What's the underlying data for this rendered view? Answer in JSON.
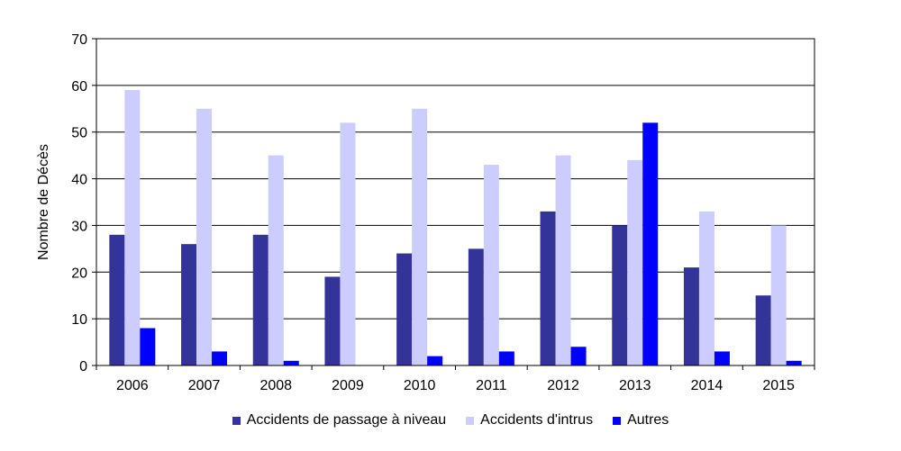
{
  "chart_data": {
    "type": "bar",
    "categories": [
      "2006",
      "2007",
      "2008",
      "2009",
      "2010",
      "2011",
      "2012",
      "2013",
      "2014",
      "2015"
    ],
    "series": [
      {
        "name": "Accidents de passage à niveau",
        "color": "#333399",
        "values": [
          28,
          26,
          28,
          19,
          24,
          25,
          33,
          30,
          21,
          15
        ]
      },
      {
        "name": "Accidents d'intrus",
        "color": "#ccccff",
        "values": [
          59,
          55,
          45,
          52,
          55,
          43,
          45,
          44,
          33,
          30
        ]
      },
      {
        "name": "Autres",
        "color": "#0000ff",
        "values": [
          8,
          3,
          1,
          0,
          2,
          3,
          4,
          52,
          3,
          1
        ]
      }
    ],
    "ylabel": "Nombre de Décès",
    "ylim": [
      0,
      70
    ],
    "yticks": [
      0,
      10,
      20,
      30,
      40,
      50,
      60,
      70
    ],
    "grid": true,
    "legend_position": "bottom"
  }
}
